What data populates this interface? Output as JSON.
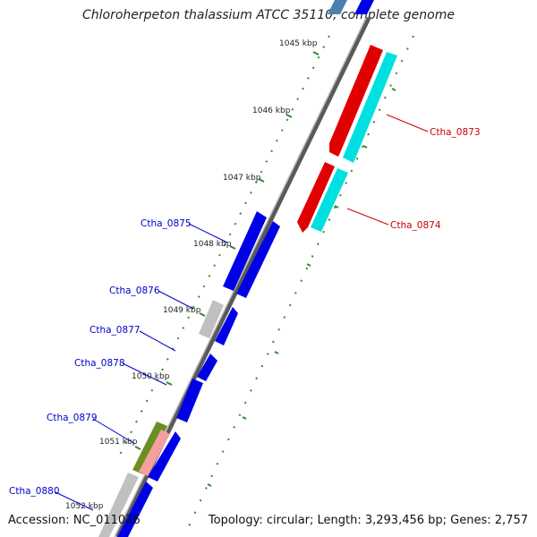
{
  "title": "Chloroherpeton thalassium ATCC 35110, complete genome",
  "footer": {
    "accession": "Accession: NC_011026",
    "summary": "Topology: circular; Length: 3,293,456 bp; Genes: 2,757"
  },
  "colors": {
    "backbone": "#8a8a8a",
    "tick": "#2e8b2e",
    "forward_cds": "#e00000",
    "forward_other": "#00e0e0",
    "reverse_cds": "#0000e6",
    "reverse_other": "#c0c0c0",
    "reverse_olive": "#6b8e23",
    "reverse_salmon": "#f4a0a0",
    "label_red": "#cc0000",
    "label_blue": "#0000cc"
  },
  "kbp_labels": [
    "1045 kbp",
    "1046 kbp",
    "1047 kbp",
    "1048 kbp",
    "1049 kbp",
    "1050 kbp",
    "1051 kbp",
    "1052 kbp"
  ],
  "gene_labels": [
    {
      "id": "g0873",
      "text": "Ctha_0873",
      "strand": "forward"
    },
    {
      "id": "g0874",
      "text": "Ctha_0874",
      "strand": "forward"
    },
    {
      "id": "g0875",
      "text": "Ctha_0875",
      "strand": "reverse"
    },
    {
      "id": "g0876",
      "text": "Ctha_0876",
      "strand": "reverse"
    },
    {
      "id": "g0877",
      "text": "Ctha_0877",
      "strand": "reverse"
    },
    {
      "id": "g0878",
      "text": "Ctha_0878",
      "strand": "reverse"
    },
    {
      "id": "g0879",
      "text": "Ctha_0879",
      "strand": "reverse"
    },
    {
      "id": "g0880",
      "text": "Ctha_0880",
      "strand": "reverse"
    }
  ]
}
